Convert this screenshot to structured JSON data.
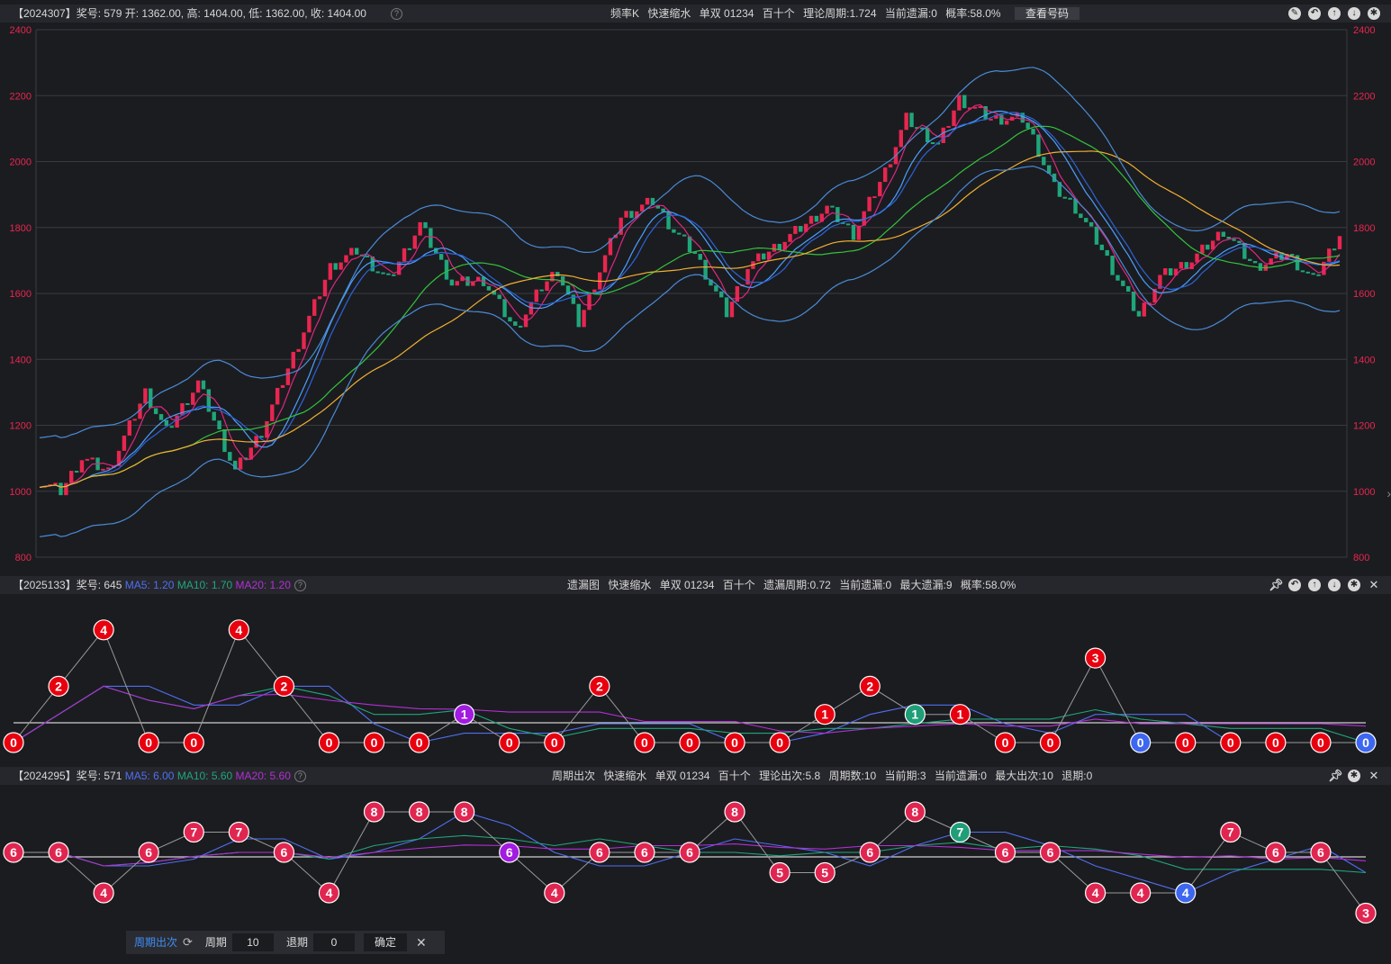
{
  "top_panel": {
    "left_info": "【2024307】奖号: 579   开: 1362.00, 高: 1404.00, 低: 1362.00, 收: 1404.00",
    "center_items": [
      "频率K",
      "快速缩水",
      "单双 01234",
      "百十个",
      "理论周期:1.724",
      "当前遗漏:0",
      "概率:58.0%"
    ],
    "view_button": "查看号码",
    "y_ticks": [
      "2400",
      "2200",
      "2000",
      "1800",
      "1600",
      "1400",
      "1200",
      "1000",
      "800"
    ]
  },
  "mid_panel": {
    "issue": "【2025133】奖号: 645",
    "ma5": "MA5: 1.20",
    "ma10": "MA10: 1.70",
    "ma20": "MA20: 1.20",
    "center_items": [
      "遗漏图",
      "快速缩水",
      "单双 01234",
      "百十个",
      "遗漏周期:0.72",
      "当前遗漏:0",
      "最大遗漏:9",
      "概率:58.0%"
    ],
    "nodes": [
      0,
      2,
      4,
      0,
      0,
      4,
      2,
      0,
      0,
      0,
      1,
      0,
      0,
      2,
      0,
      0,
      0,
      0,
      1,
      2,
      1,
      1,
      0,
      0,
      3,
      0,
      0,
      0,
      0,
      0,
      0
    ],
    "node_colors": [
      "r",
      "r",
      "r",
      "r",
      "r",
      "r",
      "r",
      "r",
      "r",
      "r",
      "p",
      "r",
      "r",
      "r",
      "r",
      "r",
      "r",
      "r",
      "r",
      "r",
      "g",
      "r",
      "r",
      "r",
      "r",
      "b",
      "r",
      "r",
      "r",
      "r",
      "b"
    ]
  },
  "bot_panel": {
    "issue": "【2024295】奖号: 571",
    "ma5": "MA5: 6.00",
    "ma10": "MA10: 5.60",
    "ma20": "MA20: 5.60",
    "center_items": [
      "周期出次",
      "快速缩水",
      "单双 01234",
      "百十个",
      "理论出次:5.8",
      "周期数:10",
      "当前期:3",
      "当前遗漏:0",
      "最大出次:10",
      "退期:0"
    ],
    "nodes": [
      6,
      6,
      4,
      6,
      7,
      7,
      6,
      4,
      8,
      8,
      8,
      6,
      4,
      6,
      6,
      6,
      8,
      5,
      5,
      6,
      8,
      7,
      6,
      6,
      4,
      4,
      4,
      7,
      6,
      6,
      3
    ],
    "node_colors": [
      "c",
      "c",
      "c",
      "c",
      "c",
      "c",
      "c",
      "c",
      "c",
      "c",
      "c",
      "p",
      "c",
      "c",
      "c",
      "c",
      "c",
      "c",
      "c",
      "c",
      "c",
      "g",
      "c",
      "c",
      "c",
      "c",
      "b",
      "c",
      "c",
      "c",
      "c"
    ]
  },
  "toolbar": {
    "title": "周期出次",
    "period_label": "周期",
    "period_value": "10",
    "back_label": "退期",
    "back_value": "0",
    "confirm": "确定"
  },
  "colors": {
    "up": "#e8264f",
    "down": "#1fa67a",
    "node_red": "#e8000f",
    "node_crimson": "#e02650",
    "node_purple": "#a21be0",
    "node_green": "#1f9e78",
    "node_blue": "#3d67f0"
  }
}
